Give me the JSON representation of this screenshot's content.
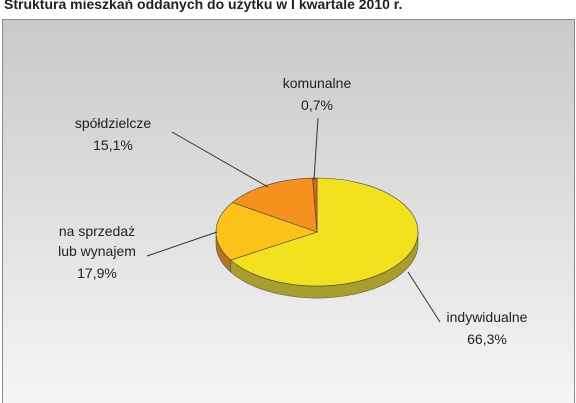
{
  "chart_data": {
    "type": "pie3d",
    "title": "Struktura mieszkań oddanych do użytku w I kwartale 2010 r.",
    "categories": [
      "indywidualne",
      "na sprzedaż\nlub wynajem",
      "spółdzielcze",
      "komunalne"
    ],
    "values": [
      66.3,
      17.9,
      15.1,
      0.7
    ],
    "value_labels": [
      "66,3%",
      "17,9%",
      "15,1%",
      "0,7%"
    ],
    "colors": [
      "#f2e21e",
      "#fbc31a",
      "#f5921e",
      "#e2601c"
    ],
    "side_colors": [
      "#a89e2c",
      "#b87224",
      "#b0641a",
      "#a0401a"
    ]
  }
}
